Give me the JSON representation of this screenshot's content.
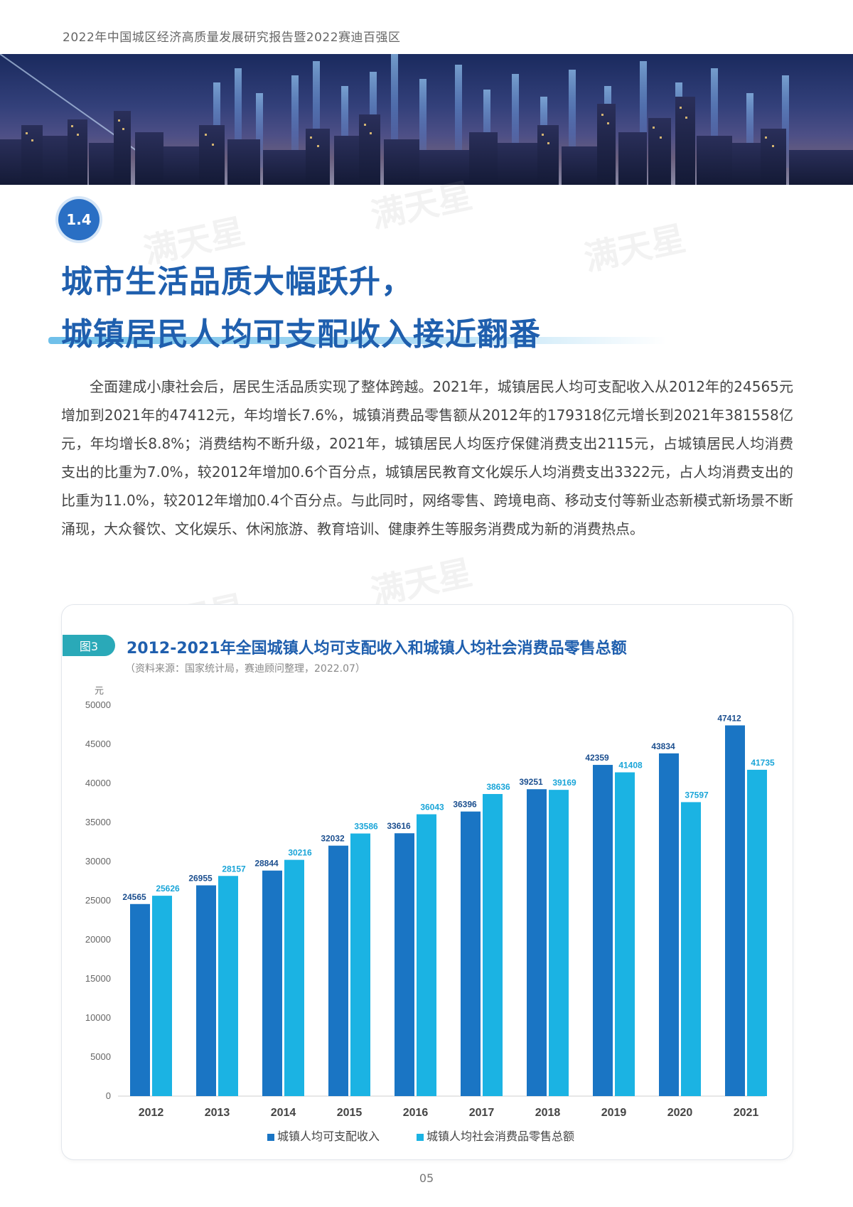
{
  "header": {
    "title": "2022年中国城区经济高质量发展研究报告暨2022赛迪百强区"
  },
  "section": {
    "number": "1.4",
    "heading_line1": "城市生活品质大幅跃升，",
    "heading_line2": "城镇居民人均可支配收入接近翻番"
  },
  "body_paragraph": "全面建成小康社会后，居民生活品质实现了整体跨越。2021年，城镇居民人均可支配收入从2012年的24565元增加到2021年的47412元，年均增长7.6%，城镇消费品零售额从2012年的179318亿元增长到2021年381558亿元，年均增长8.8%；消费结构不断升级，2021年，城镇居民人均医疗保健消费支出2115元，占城镇居民人均消费支出的比重为7.0%，较2012年增加0.6个百分点，城镇居民教育文化娱乐人均消费支出3322元，占人均消费支出的比重为11.0%，较2012年增加0.4个百分点。与此同时，网络零售、跨境电商、移动支付等新业态新模式新场景不断涌现，大众餐饮、文化娱乐、休闲旅游、教育培训、健康养生等服务消费成为新的消费热点。",
  "figure": {
    "tag": "图3",
    "title": "2012-2021年全国城镇人均可支配收入和城镇人均社会消费品零售总额",
    "source": "（资料来源：国家统计局，赛迪顾问整理，2022.07）"
  },
  "watermark": "满天星",
  "chart_data": {
    "type": "bar",
    "title": "2012-2021年全国城镇人均可支配收入和城镇人均社会消费品零售总额",
    "ylabel": "元",
    "ylim": [
      0,
      50000
    ],
    "yticks": [
      0,
      5000,
      10000,
      15000,
      20000,
      25000,
      30000,
      35000,
      40000,
      45000,
      50000
    ],
    "categories": [
      "2012",
      "2013",
      "2014",
      "2015",
      "2016",
      "2017",
      "2018",
      "2019",
      "2020",
      "2021"
    ],
    "series": [
      {
        "name": "城镇人均可支配收入",
        "color": "#1a75c4",
        "label_color": "#1c4f8f",
        "values": [
          24565,
          26955,
          28844,
          32032,
          33616,
          36396,
          39251,
          42359,
          43834,
          47412
        ]
      },
      {
        "name": "城镇人均社会消费品零售总额",
        "color": "#1bb3e3",
        "label_color": "#1aa5d8",
        "values": [
          25626,
          28157,
          30216,
          33586,
          36043,
          38636,
          39169,
          41408,
          37597,
          41735
        ]
      }
    ],
    "legend_position": "bottom"
  },
  "page_number": "05"
}
